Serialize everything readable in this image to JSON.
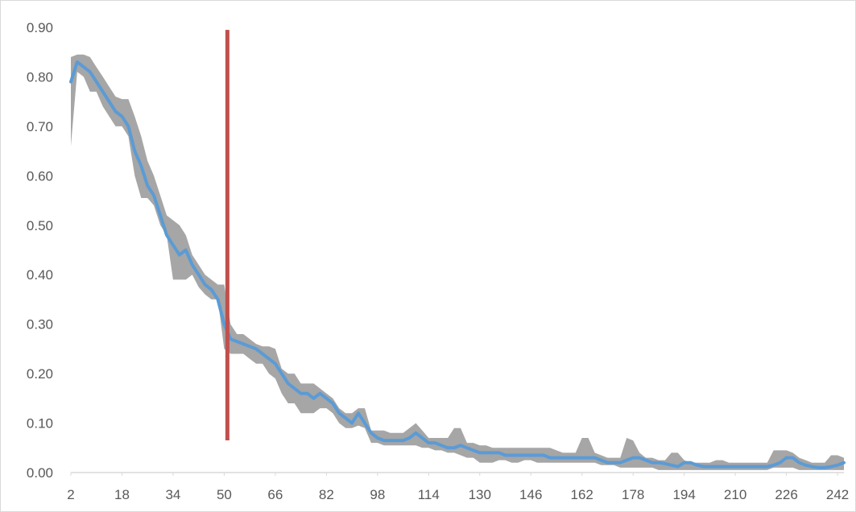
{
  "chart_data": {
    "type": "line",
    "title": "",
    "xlabel": "",
    "ylabel": "",
    "xlim": [
      2,
      244
    ],
    "ylim": [
      0,
      0.9
    ],
    "grid": false,
    "legend": "none",
    "x_tick_labels": [
      "2",
      "18",
      "34",
      "50",
      "66",
      "82",
      "98",
      "114",
      "130",
      "146",
      "162",
      "178",
      "194",
      "210",
      "226",
      "242"
    ],
    "y_tick_labels": [
      "0.00",
      "0.10",
      "0.20",
      "0.30",
      "0.40",
      "0.50",
      "0.60",
      "0.70",
      "0.80",
      "0.90"
    ],
    "colors": {
      "mean_line": "#5b9bd5",
      "band": "#a6a6a6",
      "marker_line": "#c0504d",
      "axis": "#d9d9d9",
      "text": "#595959"
    },
    "series": [
      {
        "role": "mean",
        "x": [
          2,
          4,
          6,
          8,
          10,
          12,
          14,
          16,
          18,
          20,
          22,
          24,
          26,
          28,
          30,
          32,
          34,
          36,
          38,
          40,
          42,
          44,
          46,
          48,
          50,
          52,
          54,
          56,
          58,
          60,
          62,
          64,
          66,
          68,
          70,
          72,
          74,
          76,
          78,
          80,
          82,
          84,
          86,
          88,
          90,
          92,
          94,
          96,
          98,
          100,
          102,
          104,
          106,
          108,
          110,
          112,
          114,
          116,
          118,
          120,
          122,
          124,
          126,
          128,
          130,
          132,
          134,
          136,
          138,
          140,
          142,
          144,
          146,
          148,
          150,
          152,
          154,
          156,
          158,
          160,
          162,
          164,
          166,
          168,
          170,
          172,
          174,
          176,
          178,
          180,
          182,
          184,
          186,
          188,
          190,
          192,
          194,
          196,
          198,
          200,
          202,
          204,
          206,
          208,
          210,
          212,
          214,
          216,
          218,
          220,
          222,
          224,
          226,
          228,
          230,
          232,
          234,
          236,
          238,
          240,
          242,
          244
        ],
        "values": [
          0.79,
          0.83,
          0.82,
          0.81,
          0.79,
          0.77,
          0.75,
          0.73,
          0.72,
          0.7,
          0.65,
          0.62,
          0.58,
          0.56,
          0.52,
          0.48,
          0.46,
          0.44,
          0.45,
          0.42,
          0.4,
          0.38,
          0.37,
          0.35,
          0.3,
          0.27,
          0.265,
          0.26,
          0.255,
          0.25,
          0.24,
          0.23,
          0.22,
          0.2,
          0.18,
          0.17,
          0.16,
          0.16,
          0.15,
          0.16,
          0.15,
          0.14,
          0.12,
          0.11,
          0.1,
          0.12,
          0.1,
          0.08,
          0.07,
          0.065,
          0.065,
          0.065,
          0.065,
          0.07,
          0.08,
          0.07,
          0.06,
          0.06,
          0.055,
          0.05,
          0.05,
          0.055,
          0.05,
          0.045,
          0.04,
          0.04,
          0.04,
          0.04,
          0.035,
          0.035,
          0.035,
          0.035,
          0.035,
          0.035,
          0.035,
          0.03,
          0.03,
          0.03,
          0.03,
          0.03,
          0.03,
          0.03,
          0.03,
          0.025,
          0.02,
          0.02,
          0.02,
          0.025,
          0.03,
          0.03,
          0.025,
          0.02,
          0.02,
          0.018,
          0.015,
          0.012,
          0.02,
          0.02,
          0.015,
          0.012,
          0.012,
          0.012,
          0.012,
          0.012,
          0.012,
          0.012,
          0.012,
          0.012,
          0.012,
          0.012,
          0.015,
          0.02,
          0.03,
          0.03,
          0.02,
          0.015,
          0.012,
          0.01,
          0.01,
          0.012,
          0.015,
          0.02
        ]
      },
      {
        "role": "band_upper",
        "x": [
          2,
          4,
          6,
          8,
          10,
          12,
          14,
          16,
          18,
          20,
          22,
          24,
          26,
          28,
          30,
          32,
          34,
          36,
          38,
          40,
          42,
          44,
          46,
          48,
          50,
          52,
          54,
          56,
          58,
          60,
          62,
          64,
          66,
          68,
          70,
          72,
          74,
          76,
          78,
          80,
          82,
          84,
          86,
          88,
          90,
          92,
          94,
          96,
          98,
          100,
          102,
          104,
          106,
          108,
          110,
          112,
          114,
          116,
          118,
          120,
          122,
          124,
          126,
          128,
          130,
          132,
          134,
          136,
          138,
          140,
          142,
          144,
          146,
          148,
          150,
          152,
          154,
          156,
          158,
          160,
          162,
          164,
          166,
          168,
          170,
          172,
          174,
          176,
          178,
          180,
          182,
          184,
          186,
          188,
          190,
          192,
          194,
          196,
          198,
          200,
          202,
          204,
          206,
          208,
          210,
          212,
          214,
          216,
          218,
          220,
          222,
          224,
          226,
          228,
          230,
          232,
          234,
          236,
          238,
          240,
          242,
          244
        ],
        "values": [
          0.84,
          0.845,
          0.845,
          0.84,
          0.82,
          0.8,
          0.78,
          0.76,
          0.755,
          0.755,
          0.72,
          0.68,
          0.63,
          0.6,
          0.56,
          0.52,
          0.51,
          0.5,
          0.48,
          0.44,
          0.42,
          0.4,
          0.39,
          0.38,
          0.38,
          0.3,
          0.28,
          0.28,
          0.27,
          0.26,
          0.255,
          0.255,
          0.25,
          0.21,
          0.2,
          0.2,
          0.18,
          0.18,
          0.18,
          0.17,
          0.16,
          0.15,
          0.13,
          0.12,
          0.12,
          0.13,
          0.13,
          0.085,
          0.085,
          0.085,
          0.08,
          0.08,
          0.08,
          0.09,
          0.1,
          0.085,
          0.07,
          0.07,
          0.07,
          0.07,
          0.09,
          0.09,
          0.06,
          0.06,
          0.055,
          0.055,
          0.05,
          0.05,
          0.05,
          0.05,
          0.05,
          0.05,
          0.05,
          0.05,
          0.05,
          0.05,
          0.045,
          0.04,
          0.04,
          0.04,
          0.07,
          0.07,
          0.04,
          0.035,
          0.03,
          0.03,
          0.03,
          0.07,
          0.065,
          0.04,
          0.03,
          0.03,
          0.025,
          0.025,
          0.04,
          0.04,
          0.025,
          0.02,
          0.02,
          0.02,
          0.02,
          0.025,
          0.025,
          0.02,
          0.02,
          0.02,
          0.02,
          0.02,
          0.02,
          0.02,
          0.045,
          0.045,
          0.045,
          0.04,
          0.03,
          0.025,
          0.02,
          0.02,
          0.02,
          0.035,
          0.035,
          0.03
        ]
      },
      {
        "role": "band_lower",
        "x": [
          2,
          4,
          6,
          8,
          10,
          12,
          14,
          16,
          18,
          20,
          22,
          24,
          26,
          28,
          30,
          32,
          34,
          36,
          38,
          40,
          42,
          44,
          46,
          48,
          50,
          52,
          54,
          56,
          58,
          60,
          62,
          64,
          66,
          68,
          70,
          72,
          74,
          76,
          78,
          80,
          82,
          84,
          86,
          88,
          90,
          92,
          94,
          96,
          98,
          100,
          102,
          104,
          106,
          108,
          110,
          112,
          114,
          116,
          118,
          120,
          122,
          124,
          126,
          128,
          130,
          132,
          134,
          136,
          138,
          140,
          142,
          144,
          146,
          148,
          150,
          152,
          154,
          156,
          158,
          160,
          162,
          164,
          166,
          168,
          170,
          172,
          174,
          176,
          178,
          180,
          182,
          184,
          186,
          188,
          190,
          192,
          194,
          196,
          198,
          200,
          202,
          204,
          206,
          208,
          210,
          212,
          214,
          216,
          218,
          220,
          222,
          224,
          226,
          228,
          230,
          232,
          234,
          236,
          238,
          240,
          242,
          244
        ],
        "values": [
          0.66,
          0.81,
          0.8,
          0.77,
          0.77,
          0.74,
          0.72,
          0.7,
          0.7,
          0.68,
          0.6,
          0.555,
          0.555,
          0.54,
          0.5,
          0.48,
          0.39,
          0.39,
          0.39,
          0.4,
          0.375,
          0.36,
          0.35,
          0.35,
          0.25,
          0.24,
          0.24,
          0.24,
          0.23,
          0.22,
          0.22,
          0.2,
          0.19,
          0.16,
          0.14,
          0.14,
          0.12,
          0.12,
          0.12,
          0.13,
          0.13,
          0.12,
          0.1,
          0.09,
          0.09,
          0.095,
          0.09,
          0.06,
          0.06,
          0.055,
          0.055,
          0.055,
          0.055,
          0.055,
          0.055,
          0.05,
          0.05,
          0.045,
          0.045,
          0.04,
          0.04,
          0.035,
          0.03,
          0.03,
          0.02,
          0.02,
          0.02,
          0.025,
          0.025,
          0.02,
          0.02,
          0.025,
          0.025,
          0.02,
          0.02,
          0.02,
          0.02,
          0.02,
          0.02,
          0.02,
          0.02,
          0.02,
          0.02,
          0.015,
          0.015,
          0.015,
          0.01,
          0.01,
          0.01,
          0.01,
          0.01,
          0.01,
          0.005,
          0.005,
          0.005,
          0.005,
          0.005,
          0.005,
          0.005,
          0.005,
          0.005,
          0.005,
          0.005,
          0.005,
          0.005,
          0.005,
          0.005,
          0.005,
          0.005,
          0.005,
          0.01,
          0.01,
          0.01,
          0.01,
          0.005,
          0.005,
          0.005,
          0.005,
          0.005,
          0.005,
          0.005,
          0.005
        ]
      }
    ],
    "reference_line": {
      "x": 51,
      "y_from": 0.065,
      "y_to": 0.895
    }
  }
}
